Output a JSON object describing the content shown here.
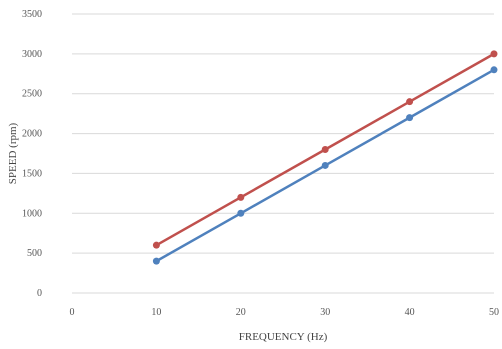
{
  "chart_data": {
    "type": "line",
    "title": "",
    "xlabel": "FREQUENCY (Hz)",
    "ylabel": "SPEED (rpm)",
    "xlim": [
      0,
      50
    ],
    "ylim": [
      0,
      3500
    ],
    "x_ticks": [
      "0",
      "10",
      "20",
      "30",
      "40",
      "50"
    ],
    "y_ticks": [
      "0",
      "500",
      "1000",
      "1500",
      "2000",
      "2500",
      "3000",
      "3500"
    ],
    "grid": "horizontal",
    "legend": "none",
    "x": [
      10,
      20,
      30,
      40,
      50
    ],
    "series": [
      {
        "color": "#c0504d",
        "values": [
          600,
          1200,
          1800,
          2400,
          3000
        ]
      },
      {
        "color": "#4f81bd",
        "values": [
          400,
          1000,
          1600,
          2200,
          2800
        ]
      }
    ]
  }
}
